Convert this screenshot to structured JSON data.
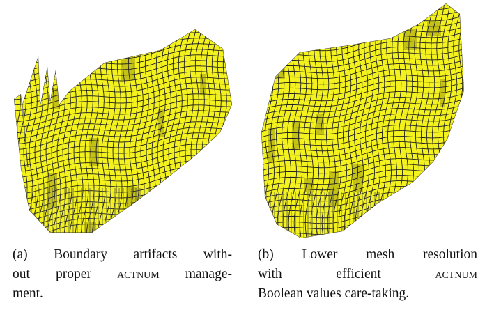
{
  "captions": [
    {
      "lines": [
        [
          "(a) Boundary artifacts with-"
        ],
        [
          "out proper ",
          "Actnum",
          " manage-"
        ],
        [
          "ment."
        ]
      ]
    },
    {
      "lines": [
        [
          "(b) Lower mesh resolution"
        ],
        [
          "with efficient ",
          "Actnum"
        ],
        [
          "Boolean values care-taking."
        ]
      ]
    }
  ]
}
